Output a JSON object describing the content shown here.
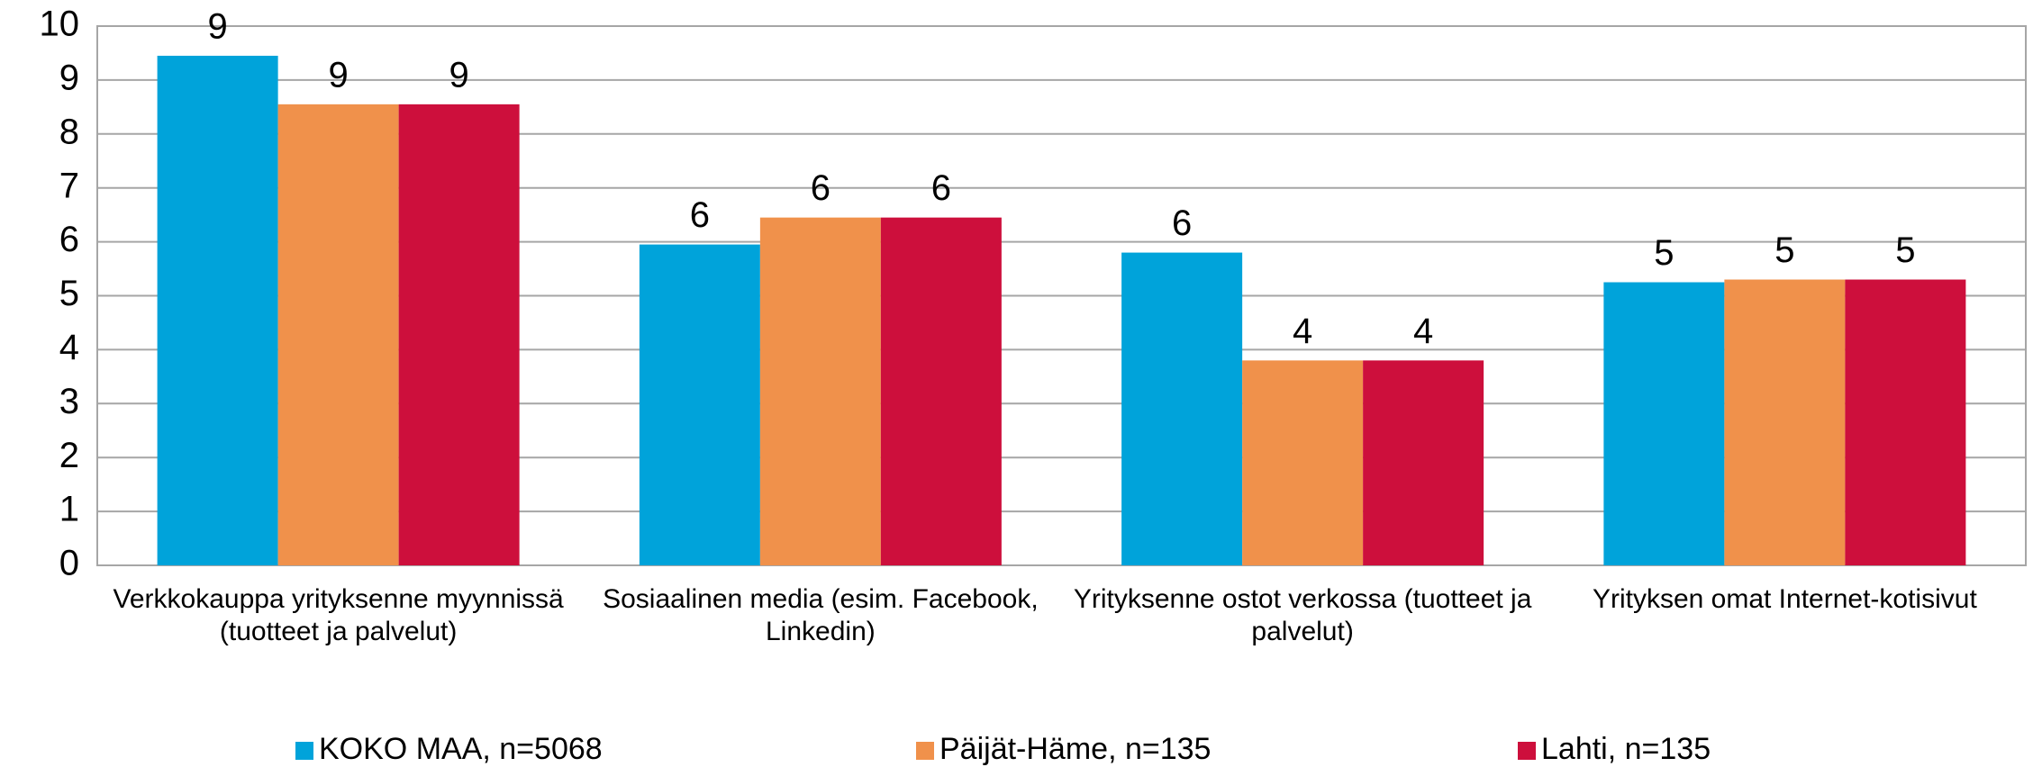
{
  "chart_data": {
    "type": "bar",
    "categories": [
      "Verkkokauppa yrityksenne myynnissä (tuotteet ja palvelut)",
      "Sosiaalinen media (esim. Facebook, Linkedin)",
      "Yrityksenne ostot verkossa (tuotteet ja palvelut)",
      "Yrityksen omat Internet-kotisivut"
    ],
    "series": [
      {
        "name": "KOKO MAA, n=5068",
        "color": "#00a3da",
        "values": [
          9.45,
          5.95,
          5.8,
          5.25
        ],
        "value_labels": [
          "9",
          "6",
          "6",
          "5"
        ]
      },
      {
        "name": "Päijät-Häme, n=135",
        "color": "#f0914b",
        "values": [
          8.55,
          6.45,
          3.8,
          5.3
        ],
        "value_labels": [
          "9",
          "6",
          "4",
          "5"
        ]
      },
      {
        "name": "Lahti, n=135",
        "color": "#cd0f3c",
        "values": [
          8.55,
          6.45,
          3.8,
          5.3
        ],
        "value_labels": [
          "9",
          "6",
          "4",
          "5"
        ]
      }
    ],
    "ylim": [
      0,
      10
    ],
    "yticks": [
      0,
      1,
      2,
      3,
      4,
      5,
      6,
      7,
      8,
      9,
      10
    ],
    "grid": true,
    "legend": "bottom"
  }
}
